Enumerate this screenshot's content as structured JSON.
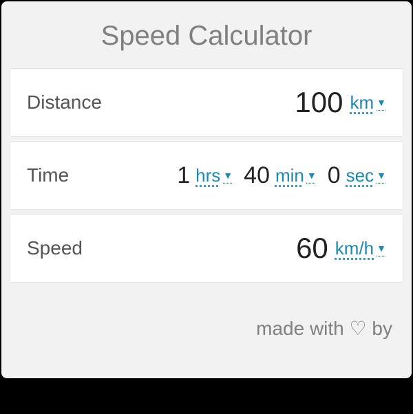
{
  "title": "Speed Calculator",
  "distance": {
    "label": "Distance",
    "value": "100",
    "unit": "km"
  },
  "time": {
    "label": "Time",
    "hours_value": "1",
    "hours_unit": "hrs",
    "minutes_value": "40",
    "minutes_unit": "min",
    "seconds_value": "0",
    "seconds_unit": "sec"
  },
  "speed": {
    "label": "Speed",
    "value": "60",
    "unit": "km/h"
  },
  "footer": "made with ♡ by",
  "colors": {
    "card_bg": "#f2f2f2",
    "row_bg": "#ffffff",
    "border": "#e5e5e5",
    "title_color": "#808080",
    "label_color": "#555555",
    "value_color": "#222222",
    "link_color": "#1a8ab5"
  }
}
